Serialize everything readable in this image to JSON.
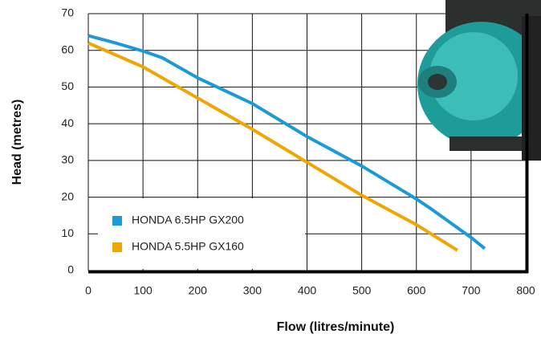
{
  "chart_data": {
    "type": "line",
    "xlabel": "Flow (litres/minute)",
    "ylabel": "Head (metres)",
    "xlim": [
      0,
      800
    ],
    "xticks": [
      0,
      100,
      200,
      300,
      400,
      500,
      600,
      700,
      800
    ],
    "ylim": [
      0,
      70
    ],
    "yticks": [
      0,
      10,
      20,
      30,
      40,
      50,
      60,
      70
    ],
    "grid": true,
    "legend": "lower left",
    "series": [
      {
        "name": "HONDA 6.5HP GX200",
        "color": "#1a9ad6",
        "x": [
          0,
          50,
          100,
          135,
          200,
          300,
          400,
          500,
          600,
          625,
          700,
          725
        ],
        "values": [
          64,
          62,
          59.8,
          58,
          52.5,
          45.5,
          36.5,
          28.5,
          19.5,
          17,
          9,
          6
        ]
      },
      {
        "name": "HONDA 5.5HP GX160",
        "color": "#f0a500",
        "x": [
          0,
          100,
          200,
          300,
          400,
          500,
          600,
          675
        ],
        "values": [
          62,
          55.5,
          47,
          38.5,
          29.5,
          20.5,
          12.5,
          5.5
        ]
      }
    ]
  }
}
